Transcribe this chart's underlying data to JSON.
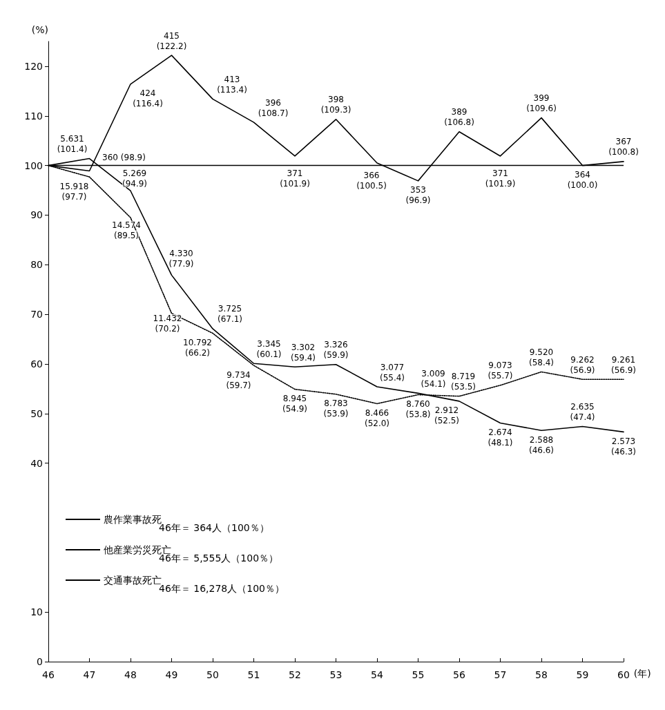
{
  "chart_data": {
    "type": "line",
    "ylabel": "(%)",
    "xlabel": "(年)",
    "categories": [
      "46",
      "47",
      "48",
      "49",
      "50",
      "51",
      "52",
      "53",
      "54",
      "55",
      "56",
      "57",
      "58",
      "59",
      "60"
    ],
    "series": [
      {
        "name": "農作業事故死",
        "color": "#000000",
        "line_style": "solid",
        "values": [
          100,
          98.9,
          116.4,
          122.2,
          113.4,
          108.7,
          101.9,
          109.3,
          100.5,
          96.9,
          106.8,
          101.9,
          109.6,
          100.0,
          100.8
        ],
        "value_labels": [
          null,
          "360 (98.9)",
          "424\n(116.4)",
          "415\n(122.2)",
          "413\n(113.4)",
          "396\n(108.7)",
          "371\n(101.9)",
          "398\n(109.3)",
          "366\n(100.5)",
          "353\n(96.9)",
          "389\n(106.8)",
          "371\n(101.9)",
          "399\n(109.6)",
          "364\n(100.0)",
          "367\n(100.8)"
        ]
      },
      {
        "name": "他産業労災死亡",
        "color": "#000000",
        "line_style": "solid",
        "values": [
          100,
          101.4,
          94.9,
          77.9,
          67.1,
          60.1,
          59.4,
          59.9,
          55.4,
          54.1,
          52.5,
          48.1,
          46.6,
          47.4,
          46.3
        ],
        "value_labels": [
          null,
          "5.631\n(101.4)",
          "5.269\n(94.9)",
          "4.330\n(77.9)",
          "3.725\n(67.1)",
          "3.345\n(60.1)",
          "3.302\n(59.4)",
          "3.326\n(59.9)",
          "3.077\n(55.4)",
          "3.009\n(54.1)",
          "2.912\n(52.5)",
          "2.674\n(48.1)",
          "2.588\n(46.6)",
          "2.635\n(47.4)",
          "2.573\n(46.3)"
        ]
      },
      {
        "name": "交通事故死亡",
        "color": "#000000",
        "line_style": "dotted",
        "values": [
          100,
          97.7,
          89.5,
          70.2,
          66.2,
          59.7,
          54.9,
          53.9,
          52.0,
          53.8,
          53.5,
          55.7,
          58.4,
          56.9,
          56.9
        ],
        "value_labels": [
          null,
          "15.918\n(97.7)",
          "14.574\n(89.5)",
          "11.432\n(70.2)",
          "10.792\n(66.2)",
          "9.734\n(59.7)",
          "8.945\n(54.9)",
          "8.783\n(53.9)",
          "8.466\n(52.0)",
          "8.760\n(53.8)",
          "8.719\n(53.5)",
          "9.073\n(55.7)",
          "9.520\n(58.4)",
          "9.262\n(56.9)",
          "9.261\n(56.9)"
        ]
      }
    ],
    "ylim": [
      0,
      125
    ],
    "yticks": [
      0,
      10,
      40,
      50,
      60,
      70,
      80,
      90,
      100,
      110,
      120
    ],
    "ref_lines": [
      {
        "axis": "y",
        "value": 100,
        "color": "#000000",
        "line_style": "solid"
      }
    ],
    "annotations": [
      "46年＝ 364人（100％）",
      "46年＝ 5,555人（100％）",
      "46年＝ 16,278人（100％）"
    ],
    "grid": false,
    "legend": "bottom left",
    "marker": "none"
  }
}
